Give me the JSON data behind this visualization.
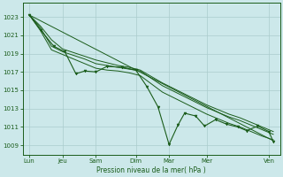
{
  "background_color": "#cce8ea",
  "grid_color": "#aacccc",
  "line_color": "#1a5c1a",
  "xlabel_text": "Pression niveau de la mer( hPa )",
  "xlim": [
    -0.3,
    11.3
  ],
  "ylim": [
    1008.0,
    1024.5
  ],
  "yticks": [
    1009,
    1011,
    1013,
    1015,
    1017,
    1019,
    1021,
    1023
  ],
  "xtick_pos": [
    0,
    1.5,
    3.0,
    4.8,
    6.3,
    8.0,
    10.8
  ],
  "xtick_labels": [
    "Lun",
    "Jeu",
    "Sam",
    "Dim",
    "Mar",
    "Mer",
    "Ven"
  ],
  "line1_x": [
    0.0,
    0.5,
    1.0,
    1.5,
    2.0,
    2.5,
    3.0,
    3.5,
    4.0,
    4.5,
    5.0,
    5.5,
    6.0,
    6.5,
    7.0,
    7.5,
    8.0,
    8.5,
    9.0,
    9.5,
    10.0,
    10.5,
    11.0
  ],
  "line1_y": [
    1023.2,
    1022.0,
    1020.5,
    1019.5,
    1019.1,
    1018.7,
    1018.3,
    1018.0,
    1017.7,
    1017.5,
    1017.2,
    1016.5,
    1015.8,
    1015.2,
    1014.6,
    1014.0,
    1013.4,
    1012.9,
    1012.4,
    1012.0,
    1011.5,
    1011.0,
    1010.5
  ],
  "line2_x": [
    0.0,
    0.5,
    1.0,
    1.5,
    2.0,
    2.5,
    3.0,
    3.5,
    4.0,
    4.5,
    5.0,
    5.5,
    6.0,
    6.5,
    7.0,
    7.5,
    8.0,
    8.5,
    9.0,
    9.5,
    10.0,
    10.5,
    11.0
  ],
  "line2_y": [
    1023.2,
    1021.8,
    1019.8,
    1019.2,
    1018.8,
    1018.4,
    1017.9,
    1017.7,
    1017.5,
    1017.3,
    1017.1,
    1016.3,
    1015.5,
    1014.9,
    1014.3,
    1013.7,
    1013.1,
    1012.6,
    1012.1,
    1011.7,
    1011.2,
    1010.7,
    1010.2
  ],
  "line3_x": [
    0.0,
    0.5,
    1.0,
    1.5,
    2.0,
    2.5,
    3.0,
    3.5,
    4.0,
    4.5,
    5.0,
    5.5,
    6.0,
    6.5,
    7.0,
    7.5,
    8.0,
    8.5,
    9.0,
    9.5,
    10.0,
    10.5,
    11.0
  ],
  "line3_y": [
    1023.2,
    1021.5,
    1019.4,
    1018.9,
    1018.4,
    1017.9,
    1017.4,
    1017.2,
    1017.1,
    1016.9,
    1016.6,
    1015.7,
    1014.8,
    1014.2,
    1013.6,
    1013.0,
    1012.4,
    1011.9,
    1011.4,
    1011.0,
    1010.5,
    1010.0,
    1009.6
  ],
  "line_var_x": [
    0.0,
    0.5,
    1.1,
    1.6,
    2.1,
    2.5,
    3.0,
    3.5,
    4.2,
    4.8,
    5.3,
    5.8,
    6.3,
    6.7,
    7.0,
    7.5,
    7.9,
    8.4,
    8.9,
    9.4,
    9.8,
    10.3,
    10.8,
    11.0
  ],
  "line_var_y": [
    1023.2,
    1021.6,
    1019.8,
    1019.2,
    1016.8,
    1017.1,
    1017.0,
    1017.6,
    1017.5,
    1017.2,
    1015.4,
    1013.2,
    1009.1,
    1011.2,
    1012.5,
    1012.2,
    1011.1,
    1011.8,
    1011.3,
    1011.0,
    1010.6,
    1011.1,
    1010.5,
    1009.4
  ],
  "trend_x": [
    0.0,
    11.0
  ],
  "trend_y": [
    1023.2,
    1009.5
  ]
}
